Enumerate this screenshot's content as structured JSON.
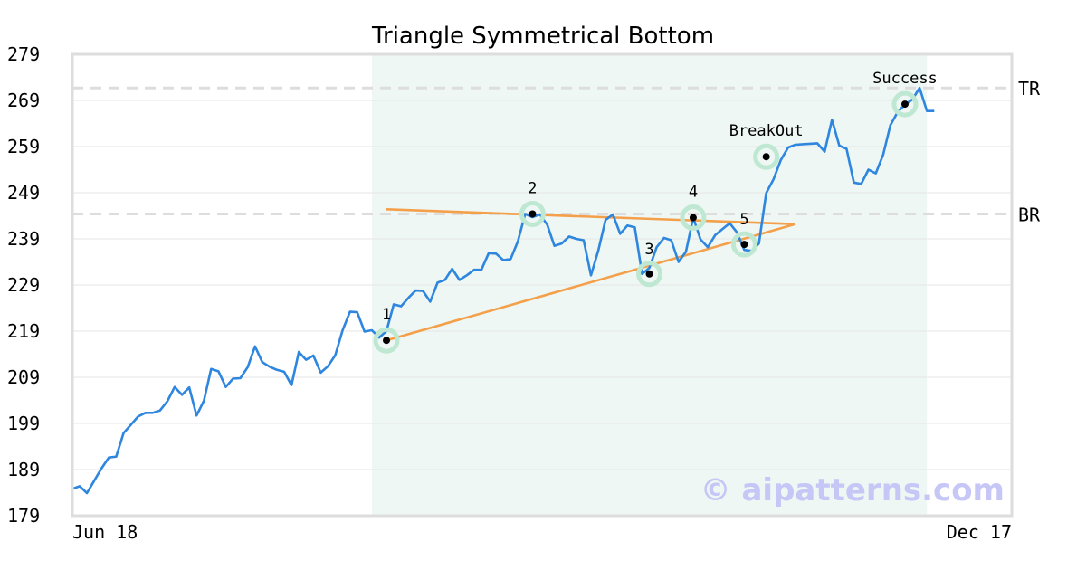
{
  "chart_data": {
    "type": "line",
    "title": "Triangle Symmetrical Bottom",
    "xlabel": "",
    "ylabel": "",
    "ylim": [
      179,
      279
    ],
    "yticks": [
      179,
      189,
      199,
      209,
      219,
      229,
      239,
      249,
      259,
      269,
      279
    ],
    "x_start_label": "Jun 18",
    "x_end_label": "Dec 17",
    "grid": true,
    "colors": {
      "price": "#2e86de",
      "trend": "#f4a04a",
      "pattern_region": "#eef7f3",
      "marker_halo": "#bfe8d3",
      "reference": "#dddddd",
      "watermark": "#c6c6f7"
    },
    "pattern_region": {
      "start_index": 41,
      "end_index": 117
    },
    "series": [
      {
        "values": [
          184.8,
          185.4,
          183.9,
          186.6,
          189.3,
          191.6,
          191.8,
          196.9,
          198.7,
          200.5,
          201.3,
          201.3,
          201.8,
          203.8,
          206.9,
          205.2,
          206.8,
          200.7,
          203.9,
          210.8,
          210.3,
          206.9,
          208.7,
          208.8,
          211.2,
          215.7,
          212.3,
          211.3,
          210.6,
          210.2,
          207.3,
          214.5,
          212.8,
          213.7,
          210.0,
          211.4,
          213.8,
          219.2,
          223.2,
          223.1,
          218.9,
          219.2,
          217.6,
          219.0,
          224.8,
          224.4,
          226.2,
          227.8,
          227.7,
          225.4,
          229.5,
          230.1,
          232.5,
          230.1,
          231.1,
          232.3,
          232.3,
          235.9,
          235.8,
          234.4,
          234.6,
          238.5,
          244.4,
          243.7,
          244.3,
          242.1,
          237.5,
          238.0,
          239.5,
          239.0,
          238.7,
          231.1,
          236.4,
          243.1,
          244.3,
          240.1,
          241.9,
          241.5,
          231.4,
          232.7,
          237.2,
          239.2,
          238.7,
          234.0,
          236.2,
          243.6,
          238.9,
          237.2,
          239.8,
          241.1,
          242.4,
          240.4,
          236.6,
          236.4,
          238.0,
          248.9,
          251.9,
          256.1,
          258.8,
          259.4,
          259.5,
          259.6,
          259.7,
          257.9,
          264.8,
          259.2,
          258.5,
          251.2,
          250.9,
          254.0,
          253.2,
          257.2,
          263.6,
          266.5,
          268.1,
          269.2,
          271.7,
          266.7,
          266.7
        ]
      }
    ],
    "trendlines": [
      {
        "x": [
          43,
          99
        ],
        "y": [
          245.4,
          242.2
        ]
      },
      {
        "x": [
          43,
          99
        ],
        "y": [
          217.0,
          242.2
        ]
      }
    ],
    "reference_lines": [
      {
        "label": "TR",
        "y": 271.7
      },
      {
        "label": "BR",
        "y": 244.4
      }
    ],
    "points": [
      {
        "label": "1",
        "x": 43,
        "y": 217.0
      },
      {
        "label": "2",
        "x": 63,
        "y": 244.4
      },
      {
        "label": "3",
        "x": 79,
        "y": 231.4
      },
      {
        "label": "4",
        "x": 85,
        "y": 243.6
      },
      {
        "label": "5",
        "x": 92,
        "y": 237.8
      },
      {
        "label": "BreakOut",
        "x": 95,
        "y": 256.8
      },
      {
        "label": "Success",
        "x": 114,
        "y": 268.2
      }
    ]
  },
  "watermark": "© aipatterns.com"
}
